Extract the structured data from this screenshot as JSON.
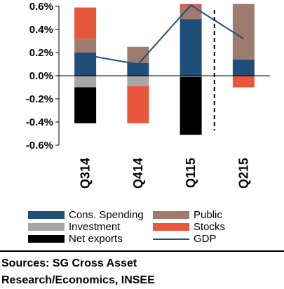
{
  "chart_data": {
    "type": "bar",
    "stacked": true,
    "categories": [
      "Q314",
      "Q414",
      "Q115",
      "Q215"
    ],
    "ylim": [
      -0.6,
      0.6
    ],
    "yticks": [
      "0.6%",
      "0.4%",
      "0.2%",
      "0.0%",
      "-0.2%",
      "-0.4%",
      "-0.6%"
    ],
    "ytick_values": [
      0.6,
      0.4,
      0.2,
      0.0,
      -0.2,
      -0.4,
      -0.6
    ],
    "grid": false,
    "forecast_divider_after": "Q115",
    "series": [
      {
        "name": "Cons. Spending",
        "color": "#1f4e79",
        "values": [
          0.2,
          0.11,
          0.49,
          0.14
        ]
      },
      {
        "name": "Investment",
        "color": "#a6a6a6",
        "values": [
          -0.1,
          -0.09,
          -0.01,
          0.0
        ]
      },
      {
        "name": "Net exports",
        "color": "#000000",
        "values": [
          -0.31,
          0.0,
          -0.5,
          0.0
        ]
      },
      {
        "name": "Public",
        "color": "#9e7b6e",
        "values": [
          0.12,
          0.14,
          0.11,
          0.48
        ]
      },
      {
        "name": "Stocks",
        "color": "#e8573a",
        "values": [
          0.27,
          -0.32,
          0.02,
          -0.1
        ]
      }
    ],
    "gdp": {
      "name": "GDP",
      "color": "#1f4e79",
      "values": [
        0.18,
        0.1,
        0.61,
        0.32
      ]
    },
    "legend_placement": "bottom"
  },
  "source_lines": [
    "Sources: SG Cross Asset",
    "Research/Economics, INSEE"
  ]
}
